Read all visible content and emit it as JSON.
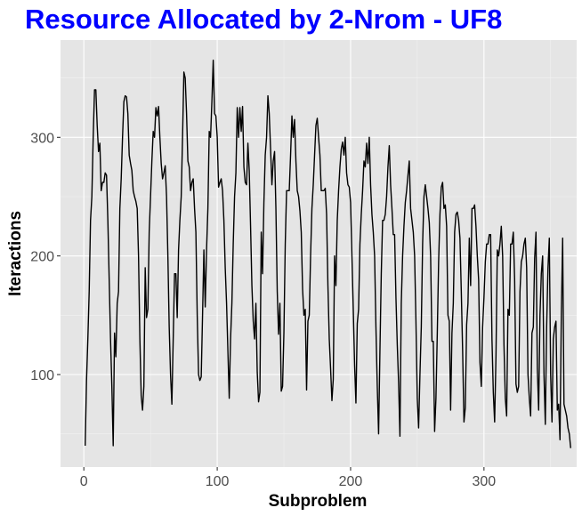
{
  "chart_data": {
    "type": "line",
    "title": "Resource Allocated by 2-Nrom - UF8",
    "xlabel": "Subproblem",
    "ylabel": "Iteractions",
    "xlim": [
      -17.5,
      369.5
    ],
    "ylim": [
      22,
      382
    ],
    "x_ticks": [
      0,
      100,
      200,
      300
    ],
    "y_ticks": [
      100,
      200,
      300
    ],
    "grid": true,
    "legend": "none",
    "series": [
      {
        "color": "#000000",
        "values": [
          40,
          95,
          130,
          170,
          230,
          250,
          300,
          340,
          340,
          310,
          288,
          295,
          255,
          262,
          262,
          270,
          268,
          230,
          180,
          130,
          90,
          40,
          135,
          115,
          160,
          170,
          240,
          265,
          300,
          330,
          335,
          334,
          320,
          285,
          278,
          272,
          255,
          250,
          246,
          240,
          200,
          130,
          82,
          70,
          90,
          190,
          148,
          155,
          220,
          250,
          280,
          305,
          300,
          325,
          318,
          326,
          300,
          278,
          265,
          270,
          276,
          250,
          200,
          140,
          100,
          75,
          130,
          185,
          185,
          148,
          205,
          230,
          250,
          300,
          355,
          350,
          320,
          280,
          275,
          255,
          262,
          265,
          240,
          220,
          150,
          100,
          95,
          98,
          150,
          205,
          157,
          205,
          240,
          305,
          300,
          330,
          365,
          320,
          318,
          300,
          258,
          262,
          265,
          255,
          230,
          190,
          160,
          120,
          80,
          130,
          160,
          210,
          250,
          270,
          325,
          300,
          325,
          305,
          326,
          275,
          262,
          260,
          295,
          272,
          225,
          175,
          145,
          130,
          160,
          102,
          77,
          85,
          220,
          185,
          245,
          285,
          300,
          335,
          320,
          290,
          260,
          280,
          288,
          240,
          170,
          134,
          160,
          86,
          90,
          135,
          210,
          255,
          255,
          255,
          285,
          318,
          300,
          315,
          280,
          255,
          250,
          238,
          220,
          172,
          150,
          155,
          87,
          145,
          150,
          200,
          240,
          260,
          285,
          310,
          316,
          300,
          285,
          255,
          255,
          255,
          257,
          235,
          175,
          130,
          105,
          78,
          96,
          200,
          175,
          230,
          255,
          275,
          290,
          296,
          285,
          300,
          270,
          260,
          258,
          245,
          200,
          155,
          108,
          76,
          143,
          155,
          210,
          235,
          255,
          280,
          275,
          295,
          278,
          300,
          260,
          235,
          220,
          200,
          140,
          90,
          50,
          120,
          185,
          230,
          230,
          235,
          250,
          275,
          293,
          260,
          240,
          218,
          218,
          165,
          125,
          93,
          48,
          160,
          200,
          225,
          245,
          255,
          268,
          280,
          240,
          230,
          220,
          200,
          145,
          80,
          55,
          100,
          140,
          210,
          250,
          260,
          250,
          240,
          228,
          200,
          128,
          128,
          52,
          80,
          135,
          195,
          235,
          258,
          262,
          240,
          243,
          225,
          150,
          145,
          70,
          135,
          160,
          220,
          235,
          237,
          230,
          215,
          170,
          120,
          60,
          72,
          142,
          160,
          215,
          175,
          240,
          240,
          243,
          225,
          200,
          180,
          110,
          90,
          140,
          165,
          195,
          210,
          210,
          218,
          218,
          130,
          85,
          60,
          115,
          205,
          200,
          210,
          225,
          200,
          125,
          80,
          65,
          155,
          150,
          210,
          210,
          220,
          180,
          92,
          85,
          90,
          170,
          195,
          200,
          210,
          215,
          190,
          100,
          80,
          65,
          135,
          140,
          198,
          220,
          105,
          70,
          150,
          185,
          200,
          100,
          58,
          140,
          190,
          215,
          100,
          60,
          130,
          140,
          145,
          70,
          75,
          45,
          150,
          215,
          75,
          70,
          65,
          55,
          50,
          38
        ]
      }
    ]
  }
}
